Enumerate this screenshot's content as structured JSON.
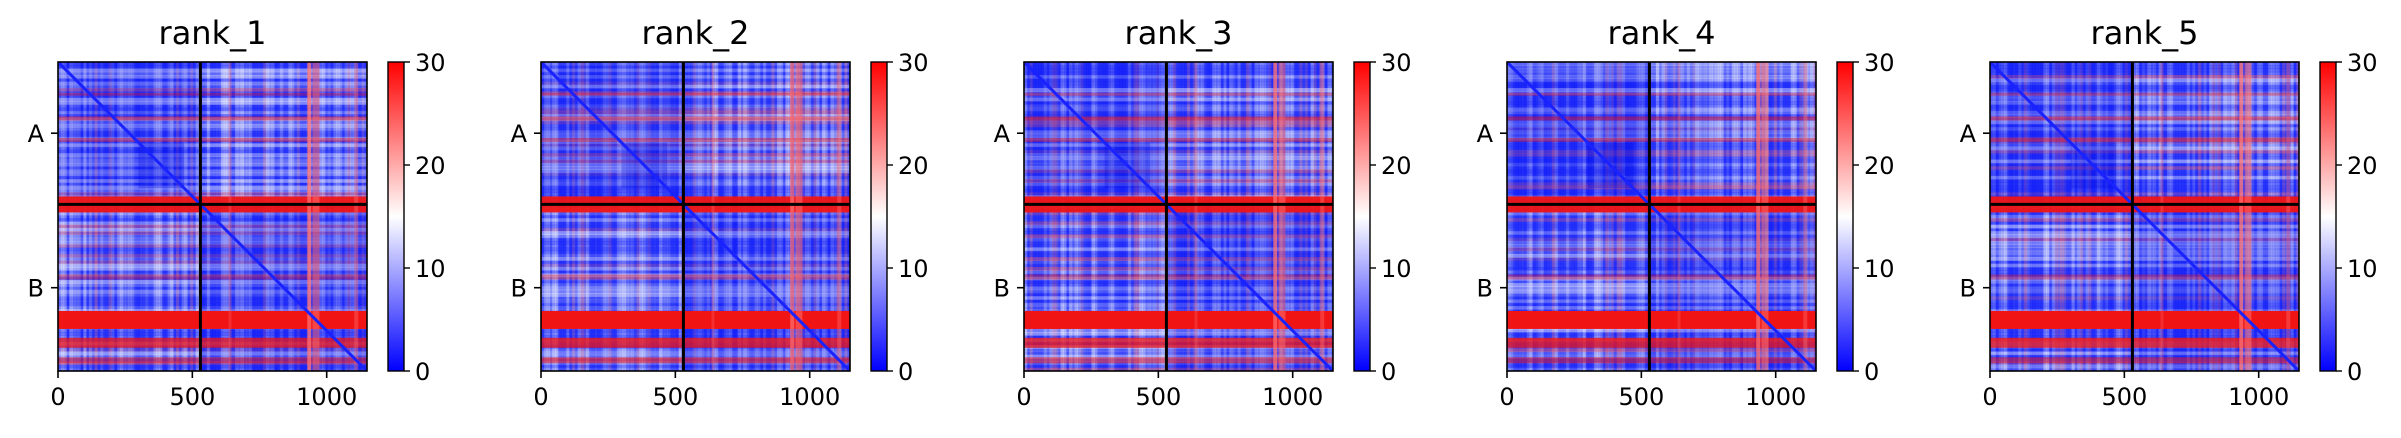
{
  "chart_data": [
    {
      "type": "heatmap",
      "title": "rank_1",
      "x_ticks": [
        0,
        500,
        1000
      ],
      "xlim": [
        0,
        1150
      ],
      "y_ticks": [
        "A",
        "B"
      ],
      "y_segments": [
        {
          "label": "A",
          "range": [
            0,
            530
          ]
        },
        {
          "label": "B",
          "range": [
            530,
            1150
          ]
        }
      ],
      "colorbar": {
        "range": [
          0,
          30
        ],
        "ticks": [
          0,
          10,
          20,
          30
        ],
        "colormap": [
          "#0000ff",
          "#ffffff",
          "#ff0000"
        ]
      }
    },
    {
      "type": "heatmap",
      "title": "rank_2",
      "x_ticks": [
        0,
        500,
        1000
      ],
      "xlim": [
        0,
        1150
      ],
      "y_ticks": [
        "A",
        "B"
      ],
      "y_segments": [
        {
          "label": "A",
          "range": [
            0,
            530
          ]
        },
        {
          "label": "B",
          "range": [
            530,
            1150
          ]
        }
      ],
      "colorbar": {
        "range": [
          0,
          30
        ],
        "ticks": [
          0,
          10,
          20,
          30
        ],
        "colormap": [
          "#0000ff",
          "#ffffff",
          "#ff0000"
        ]
      }
    },
    {
      "type": "heatmap",
      "title": "rank_3",
      "x_ticks": [
        0,
        500,
        1000
      ],
      "xlim": [
        0,
        1150
      ],
      "y_ticks": [
        "A",
        "B"
      ],
      "y_segments": [
        {
          "label": "A",
          "range": [
            0,
            530
          ]
        },
        {
          "label": "B",
          "range": [
            530,
            1150
          ]
        }
      ],
      "colorbar": {
        "range": [
          0,
          30
        ],
        "ticks": [
          0,
          10,
          20,
          30
        ],
        "colormap": [
          "#0000ff",
          "#ffffff",
          "#ff0000"
        ]
      }
    },
    {
      "type": "heatmap",
      "title": "rank_4",
      "x_ticks": [
        0,
        500,
        1000
      ],
      "xlim": [
        0,
        1150
      ],
      "y_ticks": [
        "A",
        "B"
      ],
      "y_segments": [
        {
          "label": "A",
          "range": [
            0,
            530
          ]
        },
        {
          "label": "B",
          "range": [
            530,
            1150
          ]
        }
      ],
      "colorbar": {
        "range": [
          0,
          30
        ],
        "ticks": [
          0,
          10,
          20,
          30
        ],
        "colormap": [
          "#0000ff",
          "#ffffff",
          "#ff0000"
        ]
      }
    },
    {
      "type": "heatmap",
      "title": "rank_5",
      "x_ticks": [
        0,
        500,
        1000
      ],
      "xlim": [
        0,
        1150
      ],
      "y_ticks": [
        "A",
        "B"
      ],
      "y_segments": [
        {
          "label": "A",
          "range": [
            0,
            530
          ]
        },
        {
          "label": "B",
          "range": [
            530,
            1150
          ]
        }
      ],
      "colorbar": {
        "range": [
          0,
          30
        ],
        "ticks": [
          0,
          10,
          20,
          30
        ],
        "colormap": [
          "#0000ff",
          "#ffffff",
          "#ff0000"
        ]
      }
    }
  ]
}
